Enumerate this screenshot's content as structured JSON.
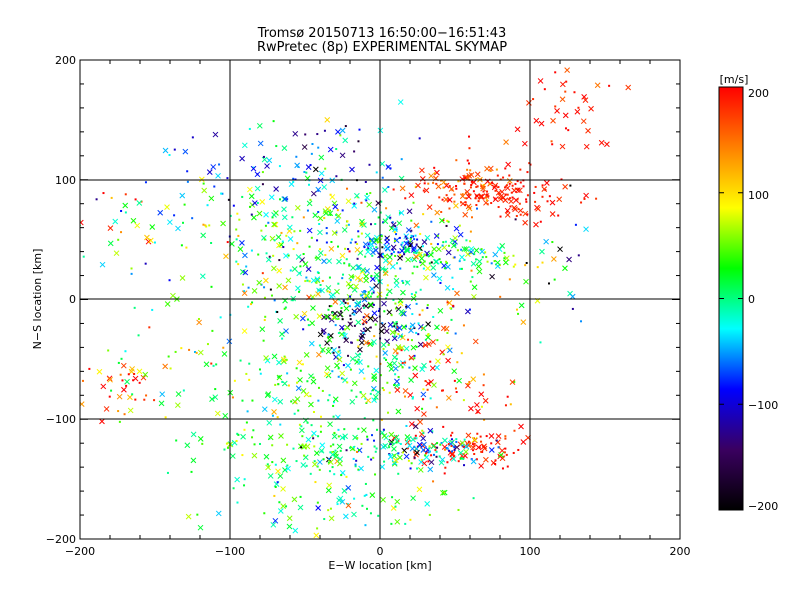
{
  "chart_data": {
    "type": "scatter",
    "title": "Tromsø 20150713 16:50:00−16:51:43",
    "subtitle": "RwPretec (8p) EXPERIMENTAL SKYMAP",
    "xlabel": "E−W location [km]",
    "ylabel": "N−S location [km]",
    "xlim": [
      -200,
      200
    ],
    "ylim": [
      -200,
      200
    ],
    "x_ticks": [
      "−200",
      "−100",
      "0",
      "100",
      "200"
    ],
    "y_ticks": [
      "200",
      "100",
      "0",
      "−100",
      "−200"
    ],
    "grid": true,
    "colorbar": {
      "unit_label": "[m/s]",
      "min": -200,
      "max": 200,
      "ticks": [
        "200",
        "100",
        "0",
        "−100",
        "−200"
      ],
      "colormap": [
        "#000000",
        "#3a0060",
        "#0000ff",
        "#00ffff",
        "#00ff00",
        "#ffff00",
        "#ff8000",
        "#ff0000"
      ]
    },
    "markers": [
      "cross",
      "dot"
    ],
    "clusters": [
      {
        "cx": 80,
        "cy": 85,
        "sx": 22,
        "sy": 10,
        "n": 130,
        "v": 190,
        "vs": 15
      },
      {
        "cx": 120,
        "cy": 160,
        "sx": 18,
        "sy": 25,
        "n": 40,
        "v": 185,
        "vs": 20
      },
      {
        "cx": 55,
        "cy": 95,
        "sx": 20,
        "sy": 10,
        "n": 80,
        "v": 175,
        "vs": 30
      },
      {
        "cx": 15,
        "cy": 45,
        "sx": 18,
        "sy": 8,
        "n": 110,
        "v": -80,
        "vs": 60
      },
      {
        "cx": 45,
        "cy": 35,
        "sx": 25,
        "sy": 8,
        "n": 90,
        "v": 20,
        "vs": 50
      },
      {
        "cx": -30,
        "cy": 65,
        "sx": 35,
        "sy": 20,
        "n": 140,
        "v": 30,
        "vs": 70
      },
      {
        "cx": -60,
        "cy": 110,
        "sx": 45,
        "sy": 20,
        "n": 110,
        "v": -60,
        "vs": 60
      },
      {
        "cx": -20,
        "cy": 10,
        "sx": 35,
        "sy": 15,
        "n": 180,
        "v": 10,
        "vs": 60
      },
      {
        "cx": -10,
        "cy": -20,
        "sx": 20,
        "sy": 12,
        "n": 90,
        "v": -140,
        "vs": 50
      },
      {
        "cx": -25,
        "cy": -60,
        "sx": 35,
        "sy": 30,
        "n": 220,
        "v": 20,
        "vs": 40
      },
      {
        "cx": 20,
        "cy": -40,
        "sx": 18,
        "sy": 15,
        "n": 60,
        "v": 80,
        "vs": 90
      },
      {
        "cx": 60,
        "cy": -125,
        "sx": 20,
        "sy": 8,
        "n": 90,
        "v": 190,
        "vs": 15
      },
      {
        "cx": 20,
        "cy": -125,
        "sx": 30,
        "sy": 8,
        "n": 130,
        "v": -20,
        "vs": 80
      },
      {
        "cx": -50,
        "cy": -125,
        "sx": 40,
        "sy": 15,
        "n": 130,
        "v": 20,
        "vs": 40
      },
      {
        "cx": -35,
        "cy": -175,
        "sx": 40,
        "sy": 15,
        "n": 70,
        "v": 20,
        "vs": 50
      },
      {
        "cx": -95,
        "cy": 45,
        "sx": 30,
        "sy": 20,
        "n": 60,
        "v": 10,
        "vs": 80
      },
      {
        "cx": -175,
        "cy": -75,
        "sx": 15,
        "sy": 15,
        "n": 40,
        "v": 150,
        "vs": 80
      },
      {
        "cx": -170,
        "cy": 65,
        "sx": 18,
        "sy": 22,
        "n": 30,
        "v": 60,
        "vs": 100
      },
      {
        "cx": 100,
        "cy": 30,
        "sx": 30,
        "sy": 25,
        "n": 30,
        "v": -50,
        "vs": 100
      },
      {
        "cx": 50,
        "cy": -80,
        "sx": 20,
        "sy": 15,
        "n": 40,
        "v": 170,
        "vs": 40
      },
      {
        "cx": -120,
        "cy": -50,
        "sx": 40,
        "sy": 40,
        "n": 60,
        "v": 40,
        "vs": 60
      },
      {
        "cx": 40,
        "cy": 0,
        "sx": 40,
        "sy": 50,
        "n": 60,
        "v": 40,
        "vs": 80
      }
    ]
  }
}
